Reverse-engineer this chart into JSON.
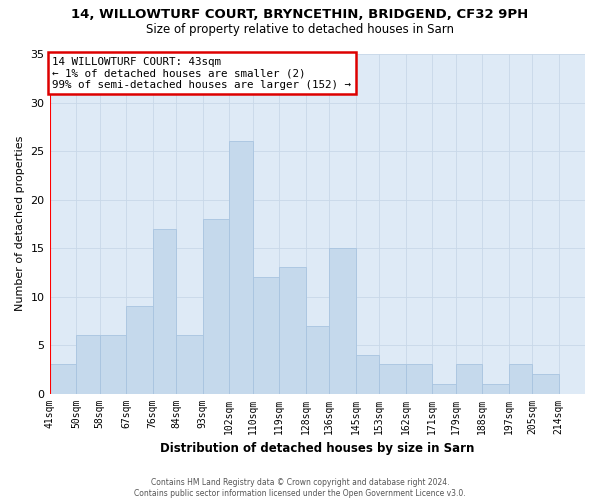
{
  "title": "14, WILLOWTURF COURT, BRYNCETHIN, BRIDGEND, CF32 9PH",
  "subtitle": "Size of property relative to detached houses in Sarn",
  "xlabel": "Distribution of detached houses by size in Sarn",
  "ylabel": "Number of detached properties",
  "bin_labels": [
    "41sqm",
    "50sqm",
    "58sqm",
    "67sqm",
    "76sqm",
    "84sqm",
    "93sqm",
    "102sqm",
    "110sqm",
    "119sqm",
    "128sqm",
    "136sqm",
    "145sqm",
    "153sqm",
    "162sqm",
    "171sqm",
    "179sqm",
    "188sqm",
    "197sqm",
    "205sqm",
    "214sqm"
  ],
  "bin_edges": [
    41,
    50,
    58,
    67,
    76,
    84,
    93,
    102,
    110,
    119,
    128,
    136,
    145,
    153,
    162,
    171,
    179,
    188,
    197,
    205,
    214
  ],
  "bar_heights": [
    3,
    6,
    6,
    9,
    17,
    6,
    18,
    26,
    12,
    13,
    7,
    15,
    4,
    3,
    3,
    1,
    3,
    1,
    3,
    2,
    0
  ],
  "bar_color": "#c5d9ec",
  "bar_edge_color": "#a8c4e0",
  "grid_color": "#c8d8e8",
  "plot_bg_color": "#deeaf6",
  "fig_bg_color": "#ffffff",
  "ylim": [
    0,
    35
  ],
  "yticks": [
    0,
    5,
    10,
    15,
    20,
    25,
    30,
    35
  ],
  "annotation_text": "14 WILLOWTURF COURT: 43sqm\n← 1% of detached houses are smaller (2)\n99% of semi-detached houses are larger (152) →",
  "annotation_box_facecolor": "#ffffff",
  "annotation_box_edgecolor": "#dd0000",
  "red_line_x": 41,
  "footer_line1": "Contains HM Land Registry data © Crown copyright and database right 2024.",
  "footer_line2": "Contains public sector information licensed under the Open Government Licence v3.0."
}
